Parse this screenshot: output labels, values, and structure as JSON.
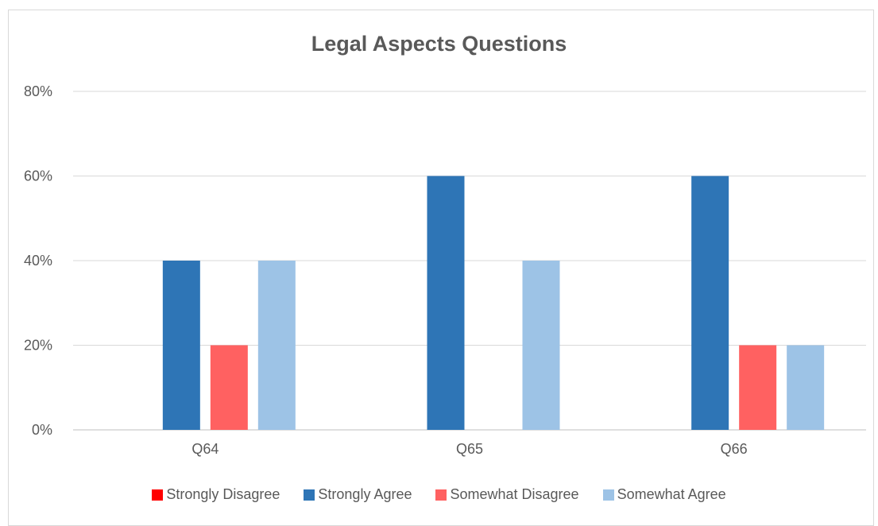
{
  "chart_data": {
    "type": "bar",
    "title": "Legal Aspects Questions",
    "xlabel": "",
    "ylabel": "",
    "categories": [
      "Q64",
      "Q65",
      "Q66"
    ],
    "ylim": [
      0,
      80
    ],
    "yticks": [
      "0%",
      "20%",
      "40%",
      "60%",
      "80%"
    ],
    "ytick_values": [
      0,
      20,
      40,
      60,
      80
    ],
    "grid": true,
    "legend_position": "bottom",
    "series": [
      {
        "name": "Strongly Disagree",
        "color": "#ff0000",
        "values": [
          0,
          0,
          0
        ]
      },
      {
        "name": "Strongly Agree",
        "color": "#2e75b6",
        "values": [
          40,
          60,
          60
        ]
      },
      {
        "name": "Somewhat Disagree",
        "color": "#ff6161",
        "values": [
          20,
          0,
          20
        ]
      },
      {
        "name": "Somewhat Agree",
        "color": "#9dc3e6",
        "values": [
          40,
          40,
          20
        ]
      }
    ]
  }
}
